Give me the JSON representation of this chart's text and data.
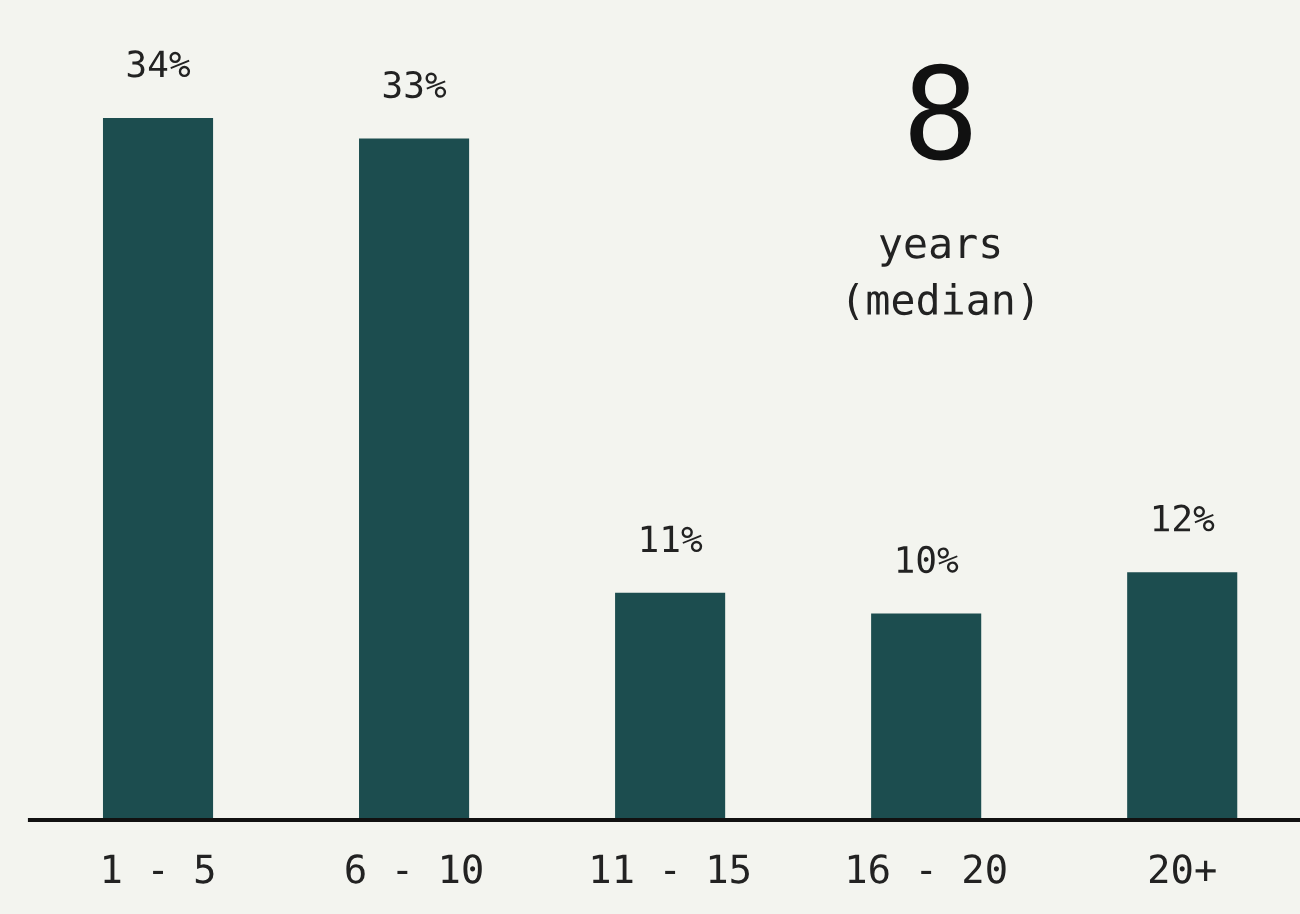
{
  "chart_data": {
    "type": "bar",
    "categories": [
      "1 - 5",
      "6 - 10",
      "11 - 15",
      "16 - 20",
      "20+"
    ],
    "values": [
      34,
      33,
      11,
      10,
      12
    ],
    "color": "#1c4d4f",
    "data_labels": true,
    "value_labels": [
      "34%",
      "33%",
      "11%",
      "10%",
      "12%"
    ],
    "annotations": [
      "8",
      "years\n(median)"
    ],
    "grid": false,
    "legend": false
  }
}
